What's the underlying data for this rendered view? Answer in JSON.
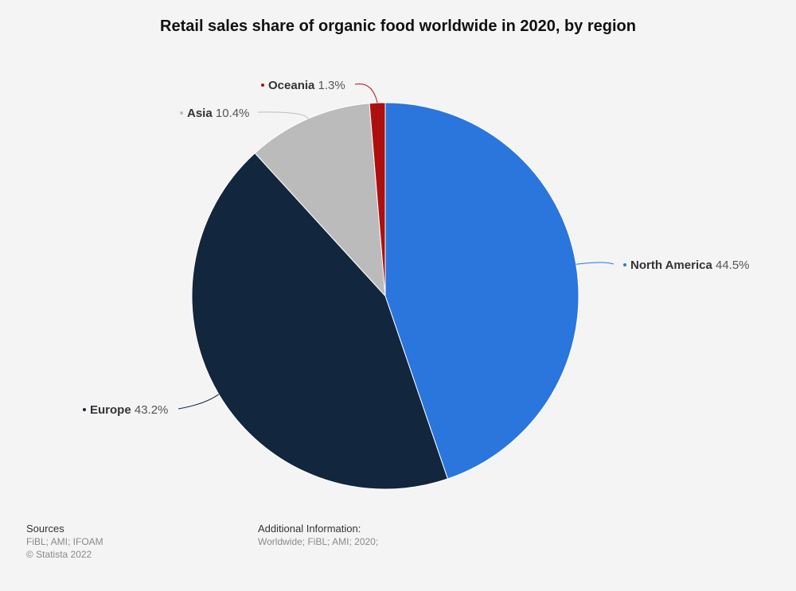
{
  "colors": {
    "north_america": "#2a76dd",
    "europe": "#12263d",
    "asia": "#bbbbbb",
    "oceania": "#ad0f0f",
    "background": "#f4f4f4"
  },
  "chart_data": {
    "type": "pie",
    "title": "Retail sales share of organic food worldwide in 2020, by region",
    "unit": "%",
    "slices": [
      {
        "label": "North America",
        "value": 44.5,
        "value_text": "44.5%",
        "color": "#2a76dd"
      },
      {
        "label": "Europe",
        "value": 43.2,
        "value_text": "43.2%",
        "color": "#12263d"
      },
      {
        "label": "Asia",
        "value": 10.4,
        "value_text": "10.4%",
        "color": "#bbbbbb"
      },
      {
        "label": "Oceania",
        "value": 1.3,
        "value_text": "1.3%",
        "color": "#ad0f0f"
      }
    ]
  },
  "footer": {
    "sources_heading": "Sources",
    "sources_text": "FiBL; AMI; IFOAM",
    "copyright": "© Statista 2022",
    "additional_heading": "Additional Information:",
    "additional_text": "Worldwide; FiBL; AMI; 2020;"
  }
}
